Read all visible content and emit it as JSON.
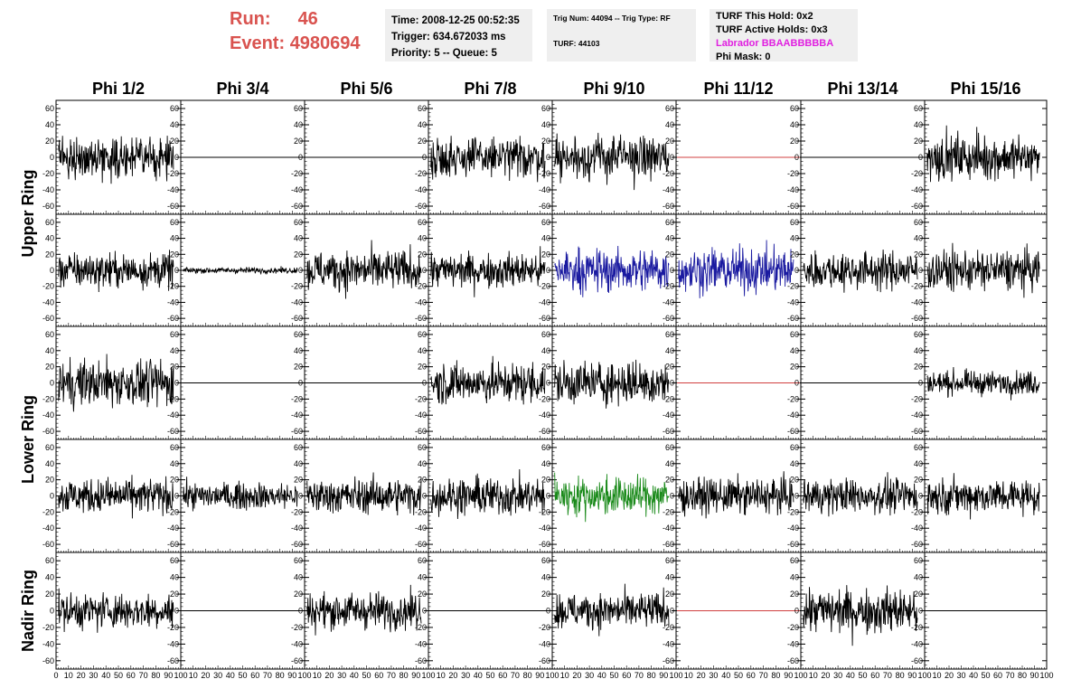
{
  "header": {
    "run_label": "Run:",
    "run_value": "46",
    "event_label": "Event:",
    "event_value": "4980694",
    "time_text": "Time: 2008-12-25 00:52:35",
    "trigger_text": "Trigger: 634.672033 ms",
    "priority_text": "Priority: 5 -- Queue: 5",
    "trig_num_text": "Trig Num: 44094 -- Trig Type: RF",
    "turf_text": "TURF: 44103",
    "turf_this_hold": "TURF This Hold: 0x2",
    "turf_active_holds": "TURF Active Holds: 0x3",
    "labrador_text": "Labrador BBAABBBBBA",
    "phi_mask_text": "Phi Mask: 0"
  },
  "colors": {
    "run_text": "#d9534f",
    "labrador_text": "#e020e0",
    "trace_default": "#000000",
    "trace_blue": "#1a1aa0",
    "trace_green": "#1a8a1a",
    "trace_flat_red": "#d04040"
  },
  "chart_data": {
    "type": "line",
    "columns": [
      "Phi 1/2",
      "Phi 3/4",
      "Phi 5/6",
      "Phi 7/8",
      "Phi 9/10",
      "Phi 11/12",
      "Phi 13/14",
      "Phi 15/16"
    ],
    "row_groups": [
      {
        "name": "Upper Ring",
        "rows": [
          0,
          1
        ]
      },
      {
        "name": "Lower Ring",
        "rows": [
          2,
          3
        ]
      },
      {
        "name": "Nadir Ring",
        "rows": [
          4
        ]
      }
    ],
    "ylim": [
      -70,
      70
    ],
    "xlim": [
      0,
      100
    ],
    "y_ticks": [
      -60,
      -40,
      -20,
      0,
      20,
      40,
      60
    ],
    "x_ticks": [
      0,
      10,
      20,
      30,
      40,
      50,
      60,
      70,
      80,
      90,
      100
    ],
    "panels": [
      [
        {
          "mode": "noise",
          "amp": 13,
          "color": "#000000"
        },
        {
          "mode": "flat",
          "color": "#000000"
        },
        {
          "mode": "flat",
          "color": "#000000"
        },
        {
          "mode": "noise",
          "amp": 14,
          "color": "#000000"
        },
        {
          "mode": "noise",
          "amp": 15,
          "color": "#000000"
        },
        {
          "mode": "flat",
          "color": "#d04040"
        },
        {
          "mode": "flat",
          "color": "#000000"
        },
        {
          "mode": "noise",
          "amp": 15,
          "color": "#000000"
        }
      ],
      [
        {
          "mode": "noise",
          "amp": 12,
          "color": "#000000"
        },
        {
          "mode": "noise",
          "amp": 2,
          "color": "#000000"
        },
        {
          "mode": "noise",
          "amp": 14,
          "color": "#000000"
        },
        {
          "mode": "noise",
          "amp": 12,
          "color": "#000000"
        },
        {
          "mode": "noise",
          "amp": 15,
          "color": "#1a1aa0"
        },
        {
          "mode": "noise",
          "amp": 15,
          "color": "#1a1aa0"
        },
        {
          "mode": "noise",
          "amp": 13,
          "color": "#000000"
        },
        {
          "mode": "noise",
          "amp": 14,
          "color": "#000000"
        }
      ],
      [
        {
          "mode": "noise",
          "amp": 16,
          "color": "#000000"
        },
        {
          "mode": "flat",
          "color": "#000000"
        },
        {
          "mode": "flat",
          "color": "#000000"
        },
        {
          "mode": "noise",
          "amp": 14,
          "color": "#000000"
        },
        {
          "mode": "noise",
          "amp": 15,
          "color": "#000000"
        },
        {
          "mode": "flat",
          "color": "#d04040"
        },
        {
          "mode": "flat",
          "color": "#000000"
        },
        {
          "mode": "noise",
          "amp": 8,
          "color": "#000000"
        }
      ],
      [
        {
          "mode": "noise",
          "amp": 12,
          "color": "#000000"
        },
        {
          "mode": "noise",
          "amp": 9,
          "color": "#000000"
        },
        {
          "mode": "noise",
          "amp": 12,
          "color": "#000000"
        },
        {
          "mode": "noise",
          "amp": 13,
          "color": "#000000"
        },
        {
          "mode": "noise",
          "amp": 13,
          "color": "#1a8a1a"
        },
        {
          "mode": "noise",
          "amp": 12,
          "color": "#000000"
        },
        {
          "mode": "noise",
          "amp": 12,
          "color": "#000000"
        },
        {
          "mode": "noise",
          "amp": 12,
          "color": "#000000"
        }
      ],
      [
        {
          "mode": "noise",
          "amp": 12,
          "color": "#000000"
        },
        {
          "mode": "flat",
          "color": "#000000"
        },
        {
          "mode": "noise",
          "amp": 12,
          "color": "#000000"
        },
        {
          "mode": "flat",
          "color": "#000000"
        },
        {
          "mode": "noise",
          "amp": 12,
          "color": "#000000"
        },
        {
          "mode": "flat",
          "color": "#d04040"
        },
        {
          "mode": "noise",
          "amp": 15,
          "color": "#000000"
        },
        {
          "mode": "flat",
          "color": "#000000"
        }
      ]
    ]
  }
}
